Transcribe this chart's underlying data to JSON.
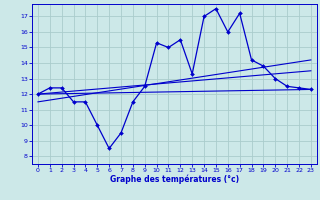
{
  "title": "Graphe des températures (°c)",
  "bg_color": "#cce8e8",
  "grid_color": "#aacccc",
  "line_color": "#0000cc",
  "x_ticks": [
    0,
    1,
    2,
    3,
    4,
    5,
    6,
    7,
    8,
    9,
    10,
    11,
    12,
    13,
    14,
    15,
    16,
    17,
    18,
    19,
    20,
    21,
    22,
    23
  ],
  "y_ticks": [
    8,
    9,
    10,
    11,
    12,
    13,
    14,
    15,
    16,
    17
  ],
  "ylim": [
    7.5,
    17.8
  ],
  "xlim": [
    -0.5,
    23.5
  ],
  "main_x": [
    0,
    1,
    2,
    3,
    4,
    5,
    6,
    7,
    8,
    9,
    10,
    11,
    12,
    13,
    14,
    15,
    16,
    17,
    18,
    19,
    20,
    21,
    22,
    23
  ],
  "main_y": [
    12.0,
    12.4,
    12.4,
    11.5,
    11.5,
    10.0,
    8.5,
    9.5,
    11.5,
    12.5,
    15.3,
    15.0,
    15.5,
    13.3,
    17.0,
    17.5,
    16.0,
    17.2,
    14.2,
    13.8,
    13.0,
    12.5,
    12.4,
    12.3
  ],
  "line1_x": [
    0,
    23
  ],
  "line1_y": [
    12.0,
    12.3
  ],
  "line2_x": [
    0,
    23
  ],
  "line2_y": [
    12.0,
    13.5
  ],
  "line3_x": [
    0,
    23
  ],
  "line3_y": [
    11.5,
    14.2
  ]
}
